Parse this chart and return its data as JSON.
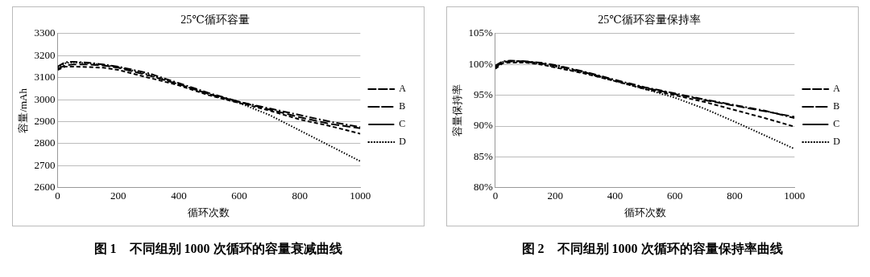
{
  "chart_data": [
    {
      "type": "line",
      "title": "25℃循环容量",
      "xlabel": "循环次数",
      "ylabel": "容量/mAh",
      "x": [
        0,
        25,
        50,
        100,
        150,
        200,
        300,
        400,
        500,
        600,
        700,
        800,
        900,
        1000
      ],
      "xlim": [
        0,
        1000
      ],
      "xticks": [
        0,
        200,
        400,
        600,
        800,
        1000
      ],
      "ylim": [
        2600,
        3300
      ],
      "yticks": [
        2600,
        2700,
        2800,
        2900,
        3000,
        3100,
        3200,
        3300
      ],
      "grid": "y",
      "legend": "right",
      "marker": "none",
      "series": [
        {
          "name": "A",
          "color": "#000000",
          "line_style": "longdash",
          "values": [
            3140,
            3155,
            3160,
            3160,
            3155,
            3145,
            3110,
            3070,
            3025,
            2990,
            2955,
            2920,
            2890,
            2870
          ]
        },
        {
          "name": "B",
          "color": "#000000",
          "line_style": "dashdot",
          "values": [
            3150,
            3170,
            3172,
            3168,
            3160,
            3150,
            3120,
            3075,
            3030,
            2990,
            2960,
            2930,
            2900,
            2875
          ]
        },
        {
          "name": "C",
          "color": "#000000",
          "line_style": "dashed",
          "values": [
            3135,
            3150,
            3150,
            3148,
            3145,
            3135,
            3100,
            3065,
            3020,
            2985,
            2950,
            2910,
            2880,
            2845
          ]
        },
        {
          "name": "D",
          "color": "#000000",
          "line_style": "dotted",
          "values": [
            3145,
            3165,
            3170,
            3165,
            3158,
            3148,
            3115,
            3070,
            3025,
            2985,
            2930,
            2860,
            2790,
            2720
          ]
        }
      ],
      "annotations": [
        "图 1　不同组别 1000 次循环的容量衰减曲线"
      ]
    },
    {
      "type": "line",
      "title": "25℃循环容量保持率",
      "xlabel": "循环次数",
      "ylabel": "容量保持率",
      "x": [
        0,
        25,
        50,
        100,
        150,
        200,
        300,
        400,
        500,
        600,
        700,
        800,
        900,
        1000
      ],
      "xlim": [
        0,
        1000
      ],
      "xticks": [
        0,
        200,
        400,
        600,
        800,
        1000
      ],
      "ylim": [
        80,
        105
      ],
      "yticks": [
        {
          "value": 80,
          "label": "80%"
        },
        {
          "value": 85,
          "label": "85%"
        },
        {
          "value": 90,
          "label": "90%"
        },
        {
          "value": 95,
          "label": "95%"
        },
        {
          "value": 100,
          "label": "100%"
        },
        {
          "value": 105,
          "label": "105%"
        }
      ],
      "grid": "y",
      "legend": "right",
      "marker": "none",
      "series": [
        {
          "name": "A",
          "color": "#000000",
          "line_style": "longdash",
          "values": [
            99.5,
            100.4,
            100.5,
            100.5,
            100.2,
            99.8,
            98.7,
            97.4,
            96.2,
            95.2,
            94.2,
            93.3,
            92.4,
            91.5
          ]
        },
        {
          "name": "B",
          "color": "#000000",
          "line_style": "dashdot",
          "values": [
            99.8,
            100.5,
            100.6,
            100.5,
            100.3,
            99.9,
            98.8,
            97.5,
            96.3,
            95.3,
            94.3,
            93.4,
            92.5,
            91.3
          ]
        },
        {
          "name": "C",
          "color": "#000000",
          "line_style": "dashed",
          "values": [
            99.3,
            100.2,
            100.3,
            100.3,
            100.0,
            99.5,
            98.5,
            97.3,
            96.0,
            95.0,
            93.9,
            92.6,
            91.3,
            89.9
          ]
        },
        {
          "name": "D",
          "color": "#000000",
          "line_style": "dotted",
          "values": [
            99.6,
            100.4,
            100.5,
            100.4,
            100.1,
            99.6,
            98.6,
            97.3,
            96.0,
            94.6,
            92.8,
            90.7,
            88.5,
            86.3
          ]
        }
      ],
      "annotations": [
        "图 2　不同组别 1000 次循环的容量保持率曲线"
      ]
    }
  ]
}
